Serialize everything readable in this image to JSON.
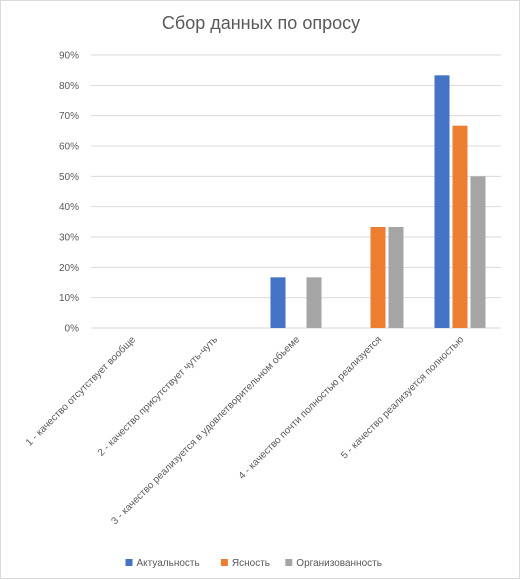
{
  "chart_data": {
    "type": "bar",
    "title": "Сбор данных по опросу",
    "xlabel": "",
    "ylabel": "",
    "categories": [
      "1 - качество отсутствует вообще",
      "2 - качество присутствует чуть-чуть",
      "3 - качество реализуется в удовлетворительном обьеме",
      "4 - качество почти полностью реализуется",
      "5 - качество реализуется полностью"
    ],
    "series": [
      {
        "name": "Актуальность",
        "color": "#4472C4",
        "values": [
          0,
          0,
          16.7,
          0,
          83.3
        ]
      },
      {
        "name": "Ясность",
        "color": "#ED7D31",
        "values": [
          0,
          0,
          0,
          33.3,
          66.7
        ]
      },
      {
        "name": "Организованность",
        "color": "#A5A5A5",
        "values": [
          0,
          0,
          16.7,
          33.3,
          50.0
        ]
      }
    ],
    "ylim": [
      0,
      90
    ],
    "yticks": [
      "0%",
      "10%",
      "20%",
      "30%",
      "40%",
      "50%",
      "60%",
      "70%",
      "80%",
      "90%"
    ],
    "grid": true,
    "legend_position": "bottom"
  }
}
